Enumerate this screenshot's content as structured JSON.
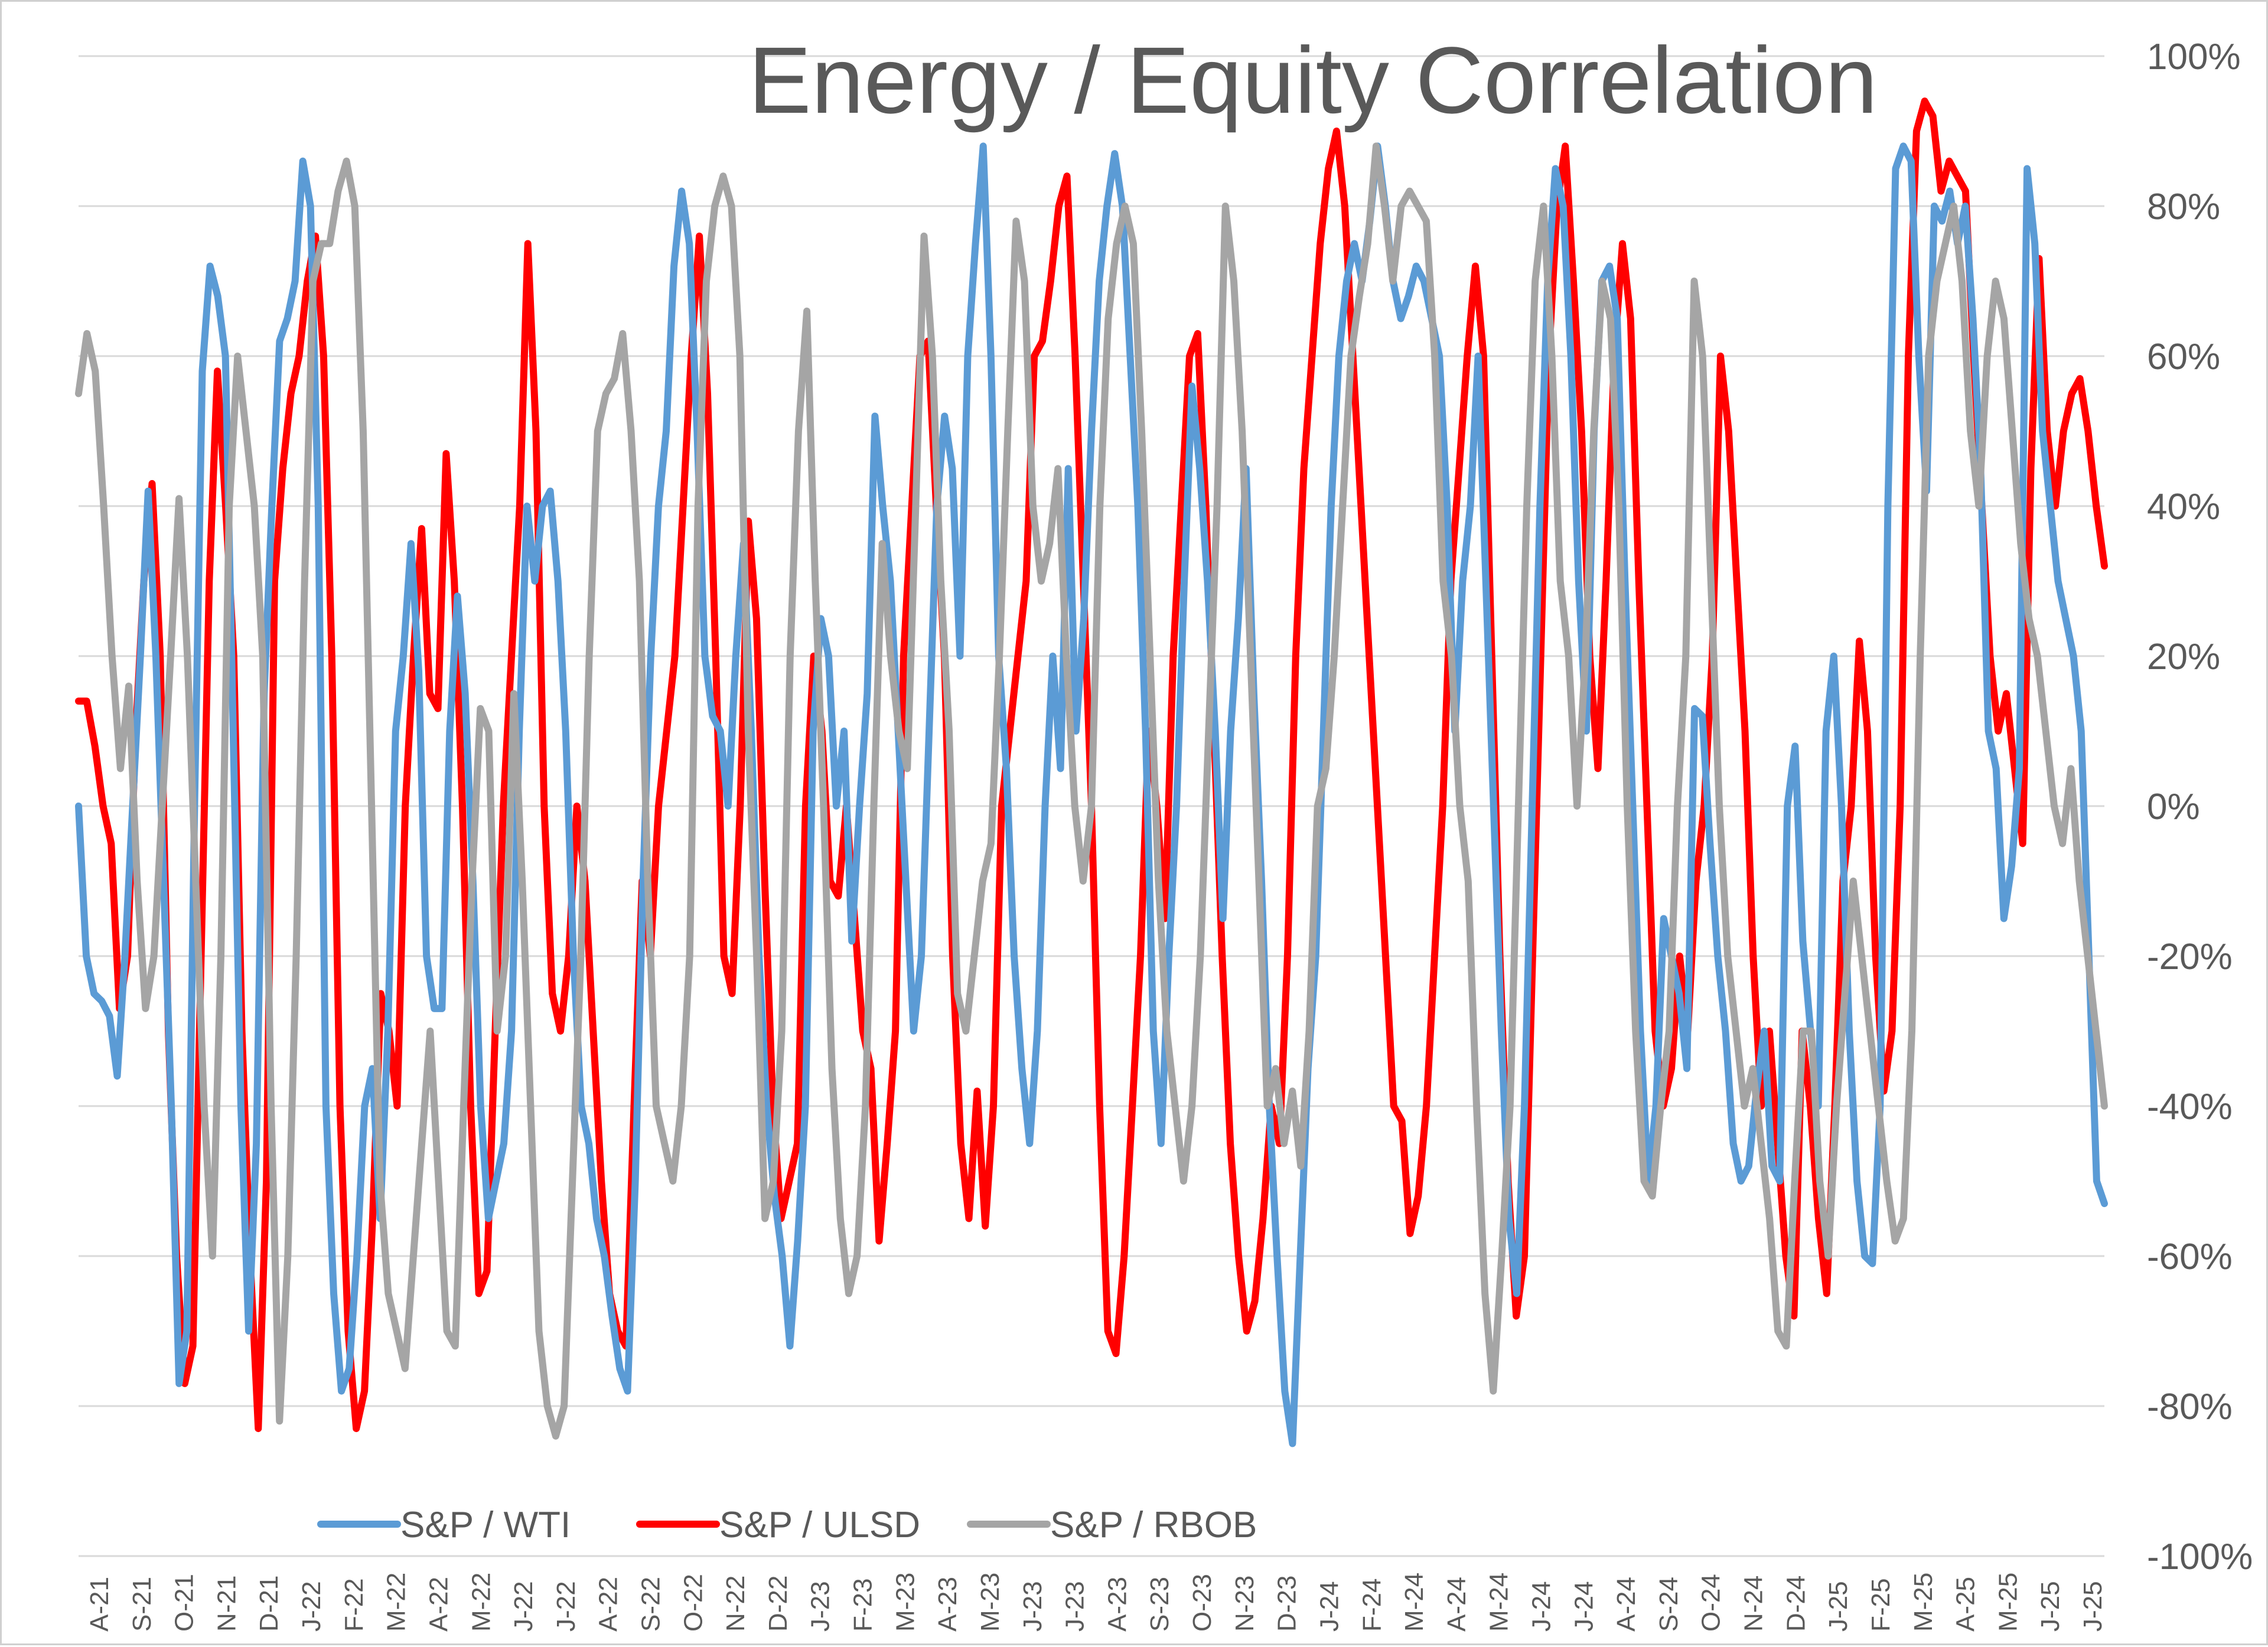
{
  "chart_data": {
    "type": "line",
    "title": "Energy / Equity Correlation",
    "xlabel": "",
    "ylabel": "",
    "ylim": [
      -100,
      100
    ],
    "y_axis_position": "right",
    "y_ticks": [
      100,
      80,
      60,
      40,
      20,
      0,
      -20,
      -40,
      -60,
      -80,
      -100
    ],
    "y_tick_labels": [
      "100%",
      "80%",
      "60%",
      "40%",
      "20%",
      "0%",
      "-20%",
      "-40%",
      "-60%",
      "-80%",
      "-100%"
    ],
    "x_tick_labels": [
      "A-21",
      "S-21",
      "O-21",
      "N-21",
      "D-21",
      "J-22",
      "F-22",
      "M-22",
      "A-22",
      "M-22",
      "J-22",
      "J-22",
      "A-22",
      "S-22",
      "O-22",
      "N-22",
      "D-22",
      "J-23",
      "F-23",
      "M-23",
      "A-23",
      "M-23",
      "J-23",
      "J-23",
      "A-23",
      "S-23",
      "O-23",
      "N-23",
      "D-23",
      "J-24",
      "F-24",
      "M-24",
      "A-24",
      "M-24",
      "J-24",
      "J-24",
      "A-24",
      "S-24",
      "O-24",
      "N-24",
      "D-24",
      "J-25",
      "F-25",
      "M-25",
      "A-25",
      "M-25",
      "J-25",
      "J-25"
    ],
    "grid": "horizontal",
    "legend": "bottom-left",
    "colors": {
      "wti": "#5B9BD5",
      "ulsd": "#FF0000",
      "rbob": "#A5A5A5"
    },
    "series": [
      {
        "name": "S&P / WTI",
        "color": "#5B9BD5",
        "values": [
          0,
          -20,
          -25,
          -26,
          -28,
          -36,
          -20,
          0,
          20,
          42,
          20,
          -10,
          -40,
          -77,
          -70,
          0,
          58,
          72,
          68,
          60,
          10,
          -40,
          -70,
          -45,
          15,
          40,
          62,
          65,
          70,
          86,
          80,
          40,
          -40,
          -65,
          -78,
          -75,
          -60,
          -40,
          -35,
          -55,
          -30,
          10,
          20,
          35,
          18,
          -20,
          -27,
          -27,
          10,
          28,
          15,
          -10,
          -40,
          -55,
          -50,
          -45,
          -30,
          10,
          40,
          30,
          40,
          42,
          30,
          10,
          -20,
          -40,
          -45,
          -55,
          -60,
          -68,
          -75,
          -78,
          -50,
          -10,
          20,
          40,
          50,
          72,
          82,
          75,
          50,
          20,
          12,
          10,
          0,
          20,
          35,
          10,
          -20,
          -40,
          -52,
          -60,
          -72,
          -58,
          -40,
          10,
          25,
          20,
          0,
          10,
          -18,
          0,
          15,
          52,
          40,
          30,
          10,
          -10,
          -30,
          -20,
          10,
          40,
          52,
          45,
          20,
          60,
          75,
          88,
          60,
          20,
          5,
          -20,
          -35,
          -45,
          -30,
          0,
          20,
          5,
          45,
          10,
          25,
          50,
          70,
          80,
          87,
          80,
          60,
          40,
          10,
          -30,
          -45,
          -20,
          0,
          30,
          56,
          45,
          30,
          10,
          -15,
          10,
          25,
          45,
          15,
          -10,
          -40,
          -60,
          -78,
          -85,
          -60,
          -35,
          -20,
          10,
          40,
          60,
          70,
          75,
          70,
          78,
          88,
          80,
          70,
          65,
          68,
          72,
          70,
          65,
          60,
          40,
          10,
          30,
          40,
          60,
          30,
          0,
          -30,
          -55,
          -65,
          -40,
          0,
          40,
          70,
          85,
          80,
          60,
          30,
          10,
          50,
          70,
          72,
          65,
          30,
          0,
          -30,
          -50,
          -40,
          -15,
          -20,
          -25,
          -35,
          13,
          12,
          -5,
          -20,
          -30,
          -45,
          -50,
          -48,
          -38,
          -30,
          -48,
          -50,
          0,
          8,
          -18,
          -30,
          -40,
          10,
          20,
          0,
          -30,
          -50,
          -60,
          -61,
          -40,
          40,
          85,
          88,
          86,
          60,
          42,
          80,
          78,
          82,
          75,
          80,
          65,
          45,
          10,
          5,
          -15,
          -8,
          5,
          85,
          75,
          50,
          40,
          30,
          25,
          20,
          10,
          -20,
          -50,
          -53
        ]
      },
      {
        "name": "S&P / ULSD",
        "color": "#FF0000",
        "values": [
          14,
          14,
          8,
          0,
          -5,
          -27,
          -20,
          10,
          30,
          43,
          20,
          -30,
          -60,
          -77,
          -72,
          -20,
          30,
          58,
          40,
          20,
          -30,
          -60,
          -83,
          -50,
          30,
          45,
          55,
          60,
          70,
          76,
          60,
          20,
          -40,
          -70,
          -83,
          -78,
          -55,
          -25,
          -30,
          -40,
          0,
          20,
          37,
          15,
          13,
          47,
          30,
          0,
          -40,
          -65,
          -62,
          -30,
          0,
          20,
          40,
          75,
          50,
          0,
          -25,
          -30,
          -20,
          0,
          -10,
          -30,
          -50,
          -65,
          -70,
          -72,
          -40,
          -10,
          -20,
          0,
          10,
          20,
          40,
          60,
          76,
          55,
          20,
          -20,
          -25,
          0,
          38,
          25,
          -10,
          -40,
          -55,
          -50,
          -45,
          0,
          20,
          10,
          -10,
          -12,
          0,
          -15,
          -30,
          -35,
          -58,
          -45,
          -30,
          20,
          40,
          60,
          62,
          40,
          20,
          -20,
          -45,
          -55,
          -38,
          -56,
          -40,
          0,
          10,
          20,
          30,
          60,
          62,
          70,
          80,
          84,
          60,
          30,
          0,
          -40,
          -70,
          -73,
          -60,
          -40,
          -20,
          10,
          0,
          -15,
          20,
          40,
          60,
          63,
          40,
          10,
          -20,
          -45,
          -60,
          -70,
          -66,
          -55,
          -40,
          -45,
          -20,
          20,
          45,
          60,
          75,
          85,
          90,
          80,
          60,
          40,
          20,
          0,
          -20,
          -40,
          -42,
          -57,
          -52,
          -40,
          -20,
          0,
          30,
          45,
          60,
          72,
          60,
          20,
          -20,
          -50,
          -68,
          -60,
          -20,
          20,
          60,
          80,
          88,
          70,
          50,
          20,
          5,
          30,
          60,
          75,
          65,
          30,
          0,
          -30,
          -40,
          -35,
          -20,
          -30,
          -10,
          0,
          20,
          60,
          50,
          30,
          10,
          -20,
          -40,
          -30,
          -45,
          -60,
          -68,
          -30,
          -40,
          -55,
          -65,
          -40,
          -10,
          0,
          22,
          10,
          -20,
          -38,
          -30,
          0,
          60,
          90,
          94,
          92,
          82,
          86,
          84,
          82,
          60,
          40,
          20,
          10,
          15,
          5,
          -5,
          45,
          73,
          50,
          40,
          50,
          55,
          57,
          50,
          40,
          32
        ]
      },
      {
        "name": "S&P / RBOB",
        "color": "#A5A5A5",
        "values": [
          55,
          63,
          58,
          40,
          20,
          5,
          16,
          -10,
          -27,
          -20,
          0,
          20,
          41,
          20,
          -10,
          -40,
          -60,
          -20,
          40,
          60,
          50,
          40,
          20,
          -40,
          -82,
          -60,
          -20,
          30,
          70,
          75,
          75,
          82,
          86,
          80,
          50,
          0,
          -50,
          -65,
          -70,
          -75,
          -60,
          -45,
          -30,
          -50,
          -70,
          -72,
          -40,
          -10,
          13,
          10,
          -30,
          -20,
          15,
          -10,
          -40,
          -70,
          -80,
          -84,
          -80,
          -50,
          -20,
          20,
          50,
          55,
          57,
          63,
          50,
          30,
          -10,
          -40,
          -45,
          -50,
          -40,
          -20,
          40,
          70,
          80,
          84,
          80,
          60,
          10,
          -20,
          -55,
          -50,
          -30,
          20,
          50,
          66,
          30,
          0,
          -35,
          -55,
          -65,
          -60,
          -40,
          0,
          35,
          20,
          10,
          5,
          40,
          76,
          60,
          30,
          10,
          -25,
          -30,
          -20,
          -10,
          -5,
          20,
          50,
          78,
          70,
          40,
          30,
          35,
          45,
          20,
          0,
          -10,
          0,
          40,
          65,
          75,
          80,
          75,
          50,
          20,
          -10,
          -30,
          -40,
          -50,
          -40,
          -20,
          10,
          40,
          80,
          70,
          50,
          20,
          -10,
          -40,
          -35,
          -45,
          -38,
          -48,
          -30,
          0,
          5,
          20,
          40,
          60,
          68,
          75,
          88,
          80,
          70,
          80,
          82,
          80,
          78,
          60,
          30,
          20,
          0,
          -10,
          -40,
          -65,
          -78,
          -60,
          -40,
          0,
          40,
          70,
          80,
          60,
          30,
          20,
          0,
          20,
          50,
          70,
          65,
          40,
          0,
          -30,
          -50,
          -52,
          -40,
          -30,
          0,
          20,
          70,
          60,
          30,
          0,
          -20,
          -30,
          -40,
          -35,
          -45,
          -55,
          -70,
          -72,
          -50,
          -30,
          -30,
          -50,
          -60,
          -40,
          -25,
          -10,
          -20,
          -30,
          -40,
          -50,
          -58,
          -55,
          -30,
          20,
          60,
          70,
          75,
          80,
          70,
          50,
          40,
          60,
          70,
          65,
          50,
          35,
          25,
          20,
          10,
          0,
          -5,
          5,
          -10,
          -20,
          -30,
          -40
        ]
      }
    ]
  }
}
